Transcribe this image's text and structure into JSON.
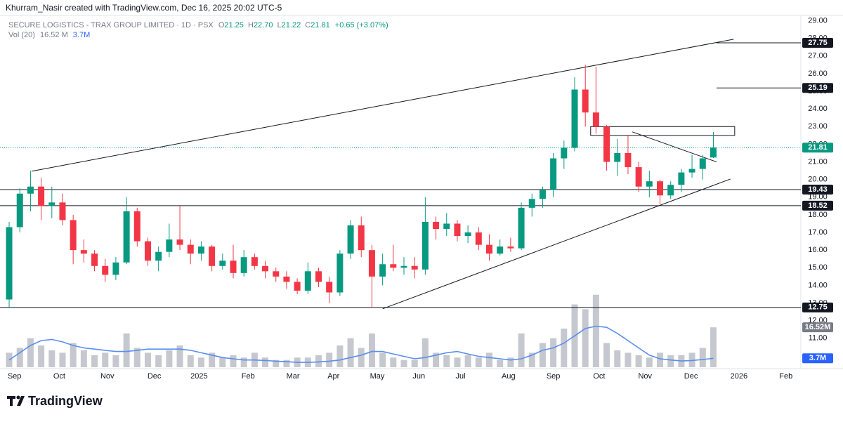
{
  "header": {
    "attribution": "Khurram_Nasir created with TradingView.com, Dec 16, 2025 20:02 UTC-5"
  },
  "chart_data": {
    "type": "candlestick",
    "title": "SECURE LOGISTICS - TRAX GROUP LIMITED · 1D · PSX",
    "ohlc_legend": [
      {
        "label": "O",
        "value": "21.25"
      },
      {
        "label": "H",
        "value": "22.70"
      },
      {
        "label": "L",
        "value": "21.22"
      },
      {
        "label": "C",
        "value": "21.81"
      }
    ],
    "change": "+0.65 (+3.07%)",
    "volume_title": "Vol (20)",
    "volume_value": "16.52 M",
    "volume_ma_value": "3.7M",
    "up_color": "#089981",
    "down_color": "#f23645",
    "open": [
      13.2,
      17.3,
      19.2,
      19.6,
      18.5,
      18.7,
      17.7,
      16.0,
      15.8,
      15.1,
      14.6,
      15.3,
      18.2,
      16.5,
      15.4,
      15.9,
      16.6,
      16.3,
      15.8,
      16.2,
      15.1,
      15.4,
      14.7,
      15.6,
      15.1,
      14.8,
      14.5,
      14.2,
      13.7,
      14.8,
      14.2,
      13.6,
      15.8,
      17.4,
      16.0,
      14.5,
      15.2,
      15.0,
      15.1,
      14.9,
      17.6,
      17.2,
      17.5,
      16.8,
      17.0,
      16.3,
      15.8,
      16.2,
      16.1,
      18.4,
      18.9,
      19.4,
      21.2,
      21.8,
      25.1,
      23.8,
      23.0,
      21.0,
      21.5,
      20.7,
      19.6,
      19.9,
      19.1,
      19.7,
      20.4,
      20.6,
      21.25
    ],
    "high": [
      17.6,
      19.5,
      20.5,
      20.1,
      19.6,
      19.2,
      18.0,
      16.6,
      16.0,
      15.5,
      15.6,
      19.0,
      18.4,
      16.7,
      16.2,
      17.5,
      18.5,
      16.6,
      16.5,
      16.3,
      15.8,
      16.3,
      16.0,
      15.8,
      15.4,
      15.0,
      14.8,
      14.4,
      15.3,
      15.0,
      14.5,
      16.0,
      17.7,
      17.9,
      16.3,
      15.8,
      16.3,
      15.6,
      15.6,
      19.0,
      17.9,
      18.1,
      17.7,
      17.4,
      17.3,
      16.9,
      16.6,
      16.7,
      18.7,
      19.2,
      19.6,
      21.5,
      22.2,
      25.8,
      26.5,
      26.4,
      23.1,
      22.3,
      22.5,
      21.0,
      20.5,
      20.0,
      19.9,
      20.6,
      21.4,
      21.4,
      22.7
    ],
    "low": [
      12.7,
      17.0,
      18.2,
      17.7,
      17.8,
      17.4,
      15.2,
      15.3,
      14.8,
      14.2,
      14.3,
      15.2,
      16.2,
      15.1,
      14.8,
      15.6,
      16.0,
      15.2,
      15.4,
      14.8,
      14.9,
      14.4,
      14.5,
      14.9,
      14.4,
      14.2,
      13.8,
      13.5,
      13.5,
      13.9,
      13.0,
      13.4,
      15.5,
      15.6,
      12.75,
      14.0,
      14.8,
      14.6,
      14.4,
      14.6,
      16.6,
      16.8,
      16.5,
      16.4,
      16.0,
      15.4,
      15.7,
      15.9,
      16.0,
      17.9,
      18.4,
      19.0,
      20.6,
      21.6,
      23.0,
      22.6,
      20.5,
      20.2,
      20.3,
      19.3,
      19.0,
      18.6,
      18.9,
      19.3,
      20.1,
      20.0,
      21.22
    ],
    "close": [
      17.3,
      19.2,
      19.6,
      18.5,
      18.7,
      17.7,
      16.0,
      15.8,
      15.1,
      14.6,
      15.3,
      18.2,
      16.5,
      15.4,
      15.9,
      16.6,
      16.3,
      15.8,
      16.2,
      15.1,
      15.4,
      14.7,
      15.6,
      15.1,
      14.8,
      14.5,
      14.2,
      13.7,
      14.8,
      14.2,
      13.6,
      15.8,
      17.4,
      16.0,
      14.5,
      15.2,
      15.0,
      15.1,
      14.9,
      17.6,
      17.2,
      17.5,
      16.8,
      17.0,
      16.3,
      15.8,
      16.2,
      16.1,
      18.4,
      18.9,
      19.4,
      21.2,
      21.8,
      25.1,
      23.8,
      23.0,
      21.0,
      21.5,
      20.7,
      19.6,
      19.9,
      19.1,
      19.7,
      20.4,
      20.6,
      21.2,
      21.81
    ],
    "volume": {
      "values": [
        6,
        8,
        12,
        9,
        7,
        6,
        10,
        7,
        5,
        6,
        5,
        14,
        8,
        6,
        5,
        7,
        9,
        5,
        4,
        6,
        4,
        5,
        4,
        6,
        4,
        3,
        3,
        4,
        4,
        5,
        6,
        9,
        12,
        8,
        14,
        6,
        4,
        3,
        3,
        12,
        6,
        5,
        4,
        5,
        4,
        6,
        3,
        4,
        14,
        6,
        10,
        12,
        16,
        26,
        24,
        30,
        10,
        7,
        6,
        5,
        4,
        6,
        5,
        5,
        6,
        8,
        16.52
      ],
      "color": "#b2b5be",
      "ma": [
        3,
        6,
        9,
        11,
        11.5,
        10.5,
        9,
        8,
        7.5,
        7,
        6.5,
        6.5,
        7,
        7.5,
        7.5,
        7.5,
        7.5,
        7,
        6,
        5,
        4,
        3.5,
        3,
        3,
        2.8,
        2.5,
        2.3,
        2,
        2,
        2.2,
        2.5,
        3,
        4,
        5,
        6.5,
        6.5,
        5.5,
        4.5,
        3.5,
        4,
        5,
        6,
        6.5,
        5.5,
        4.5,
        4,
        3.5,
        3,
        3.5,
        5,
        7,
        8,
        10,
        13,
        16,
        17,
        16.5,
        14,
        11,
        8,
        5,
        3.5,
        3,
        2.6,
        2.8,
        3.2,
        3.7
      ],
      "ma_color": "#5b8def",
      "ylim": [
        0,
        34
      ]
    },
    "volume_badges": [
      {
        "value": 16.52,
        "label": "16.52M",
        "color": "#787b86"
      },
      {
        "value": 3.7,
        "label": "3.7M",
        "color": "#2962ff"
      }
    ],
    "xlim": [
      -0.2,
      74.2
    ],
    "xticks": [
      {
        "value": 0.5,
        "label": "Sep"
      },
      {
        "value": 4.7,
        "label": "Oct"
      },
      {
        "value": 9.2,
        "label": "Nov"
      },
      {
        "value": 13.6,
        "label": "Dec"
      },
      {
        "value": 17.8,
        "label": "2025"
      },
      {
        "value": 22.4,
        "label": "Feb"
      },
      {
        "value": 26.6,
        "label": "Mar"
      },
      {
        "value": 30.4,
        "label": "Apr"
      },
      {
        "value": 34.5,
        "label": "May"
      },
      {
        "value": 38.4,
        "label": "Jun"
      },
      {
        "value": 42.3,
        "label": "Jul"
      },
      {
        "value": 46.8,
        "label": "Aug"
      },
      {
        "value": 51.0,
        "label": "Sep"
      },
      {
        "value": 55.3,
        "label": "Oct"
      },
      {
        "value": 59.6,
        "label": "Nov"
      },
      {
        "value": 63.9,
        "label": "Dec"
      },
      {
        "value": 68.4,
        "label": "2026"
      },
      {
        "value": 72.8,
        "label": "Feb"
      }
    ],
    "ylim": [
      9.4,
      29.3
    ],
    "yticks": [
      {
        "value": 11,
        "label": "11.00"
      },
      {
        "value": 12,
        "label": "12.00"
      },
      {
        "value": 13,
        "label": "13.00"
      },
      {
        "value": 14,
        "label": "14.00"
      },
      {
        "value": 15,
        "label": "15.00"
      },
      {
        "value": 16,
        "label": "16.00"
      },
      {
        "value": 17,
        "label": "17.00"
      },
      {
        "value": 18,
        "label": "18.00"
      },
      {
        "value": 19,
        "label": "19.00"
      },
      {
        "value": 20,
        "label": "20.00"
      },
      {
        "value": 21,
        "label": "21.00"
      },
      {
        "value": 22,
        "label": "22.00"
      },
      {
        "value": 23,
        "label": "23.00"
      },
      {
        "value": 24,
        "label": "24.00"
      },
      {
        "value": 25,
        "label": "25.00"
      },
      {
        "value": 26,
        "label": "26.00"
      },
      {
        "value": 27,
        "label": "27.00"
      },
      {
        "value": 28,
        "label": "28.00"
      },
      {
        "value": 29,
        "label": "29.00"
      }
    ],
    "last_price": {
      "value": 21.81,
      "label": "21.81",
      "color": "#089981"
    },
    "levels": [
      {
        "value": 27.75,
        "label": "27.75",
        "from": 66.3
      },
      {
        "value": 25.19,
        "label": "25.19",
        "from": 66.3
      },
      {
        "value": 19.43,
        "label": "19.43"
      },
      {
        "value": 18.52,
        "label": "18.52"
      },
      {
        "value": 12.75,
        "label": "12.75"
      }
    ],
    "trendlines": [
      {
        "x": [
          2.1,
          67.9
        ],
        "y": [
          20.47,
          27.95
        ]
      },
      {
        "x": [
          35.0,
          67.6
        ],
        "y": [
          12.67,
          20.03
        ]
      },
      {
        "x": [
          58.4,
          66.3
        ],
        "y": [
          22.7,
          21.0
        ]
      }
    ],
    "zone": {
      "x": [
        54.5,
        68.0
      ],
      "y": [
        22.5,
        23.0
      ]
    }
  },
  "footer": {
    "logo": "TradingView"
  }
}
